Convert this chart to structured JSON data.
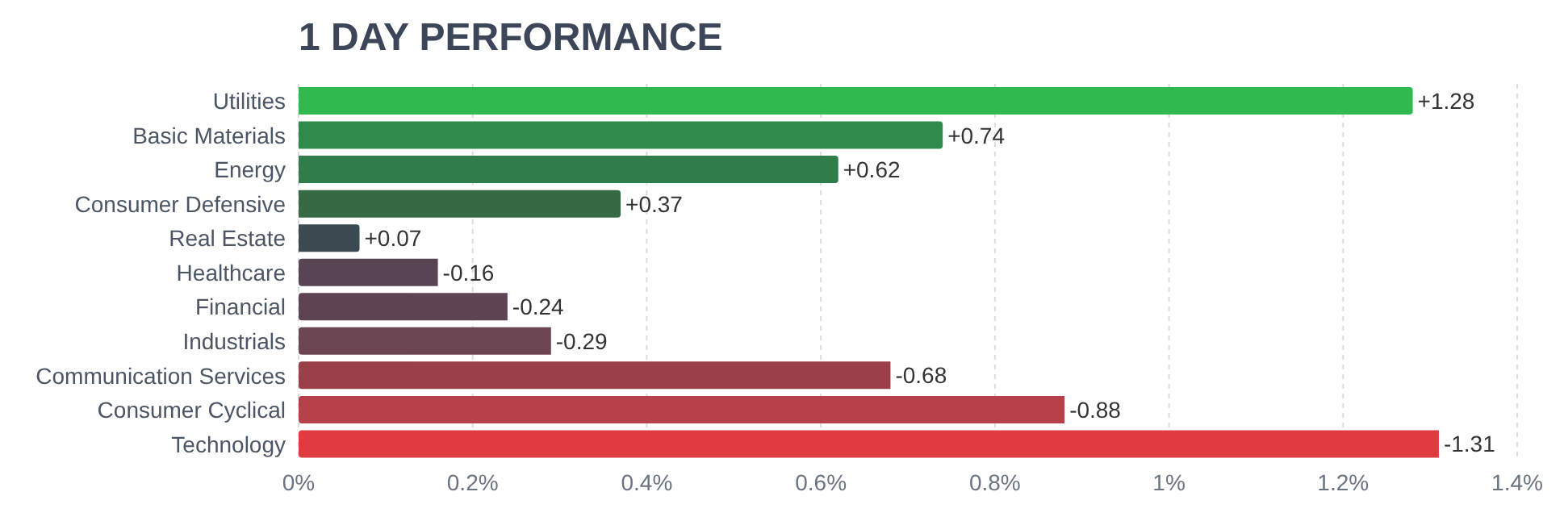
{
  "chart_data": {
    "type": "bar",
    "orientation": "horizontal",
    "title": "1 DAY PERFORMANCE",
    "categories": [
      "Utilities",
      "Basic Materials",
      "Energy",
      "Consumer Defensive",
      "Real Estate",
      "Healthcare",
      "Financial",
      "Industrials",
      "Communication Services",
      "Consumer Cyclical",
      "Technology"
    ],
    "values": [
      1.28,
      0.74,
      0.62,
      0.37,
      0.07,
      -0.16,
      -0.24,
      -0.29,
      -0.68,
      -0.88,
      -1.31
    ],
    "base": [
      0,
      0,
      0,
      0,
      0,
      0.16,
      0.24,
      0.29,
      0.68,
      0.88,
      1.31
    ],
    "value_labels": [
      "+1.28",
      "+0.74",
      "+0.62",
      "+0.37",
      "+0.07",
      "-0.16",
      "-0.24",
      "-0.29",
      "-0.68",
      "-0.88",
      "-1.31"
    ],
    "colors": [
      "#2fb94f",
      "#2e8b4c",
      "#2f7d4a",
      "#356a45",
      "#3b4a50",
      "#584452",
      "#5e4452",
      "#6b4551",
      "#9b4049",
      "#b5404a",
      "#e03b3f"
    ],
    "xlim": [
      0,
      1.4
    ],
    "xticks": [
      {
        "value": 0,
        "label": "0%"
      },
      {
        "value": 0.2,
        "label": "0.2%"
      },
      {
        "value": 0.4,
        "label": "0.4%"
      },
      {
        "value": 0.6,
        "label": "0.6%"
      },
      {
        "value": 0.8,
        "label": "0.8%"
      },
      {
        "value": 1,
        "label": "1%"
      },
      {
        "value": 1.2,
        "label": "1.2%"
      },
      {
        "value": 1.4,
        "label": "1.4%"
      }
    ],
    "grid": "x",
    "legend": false
  }
}
